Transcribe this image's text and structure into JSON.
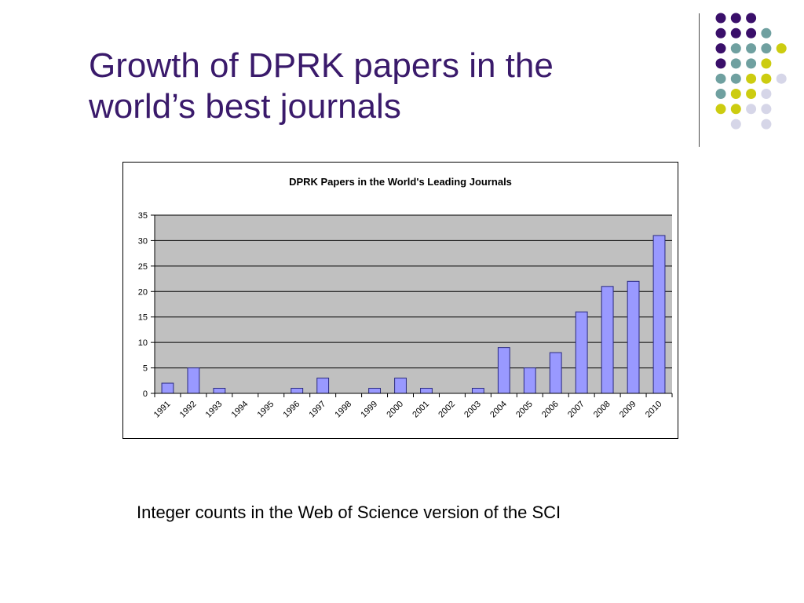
{
  "slide": {
    "title_lines": [
      "Growth of DPRK papers in the",
      "world’s best journals"
    ],
    "caption": "Integer counts in the Web of Science version of the SCI",
    "colors": {
      "title": "#3a1a6b",
      "dot_purple": "#3a0f6a",
      "dot_teal": "#6fa0a0",
      "dot_yellow": "#cccc10",
      "dot_lavender": "#d6d6e8"
    }
  },
  "decor": {
    "dot_grid": [
      [
        "purple",
        "purple",
        "purple",
        null,
        null
      ],
      [
        "purple",
        "purple",
        "purple",
        "teal",
        null
      ],
      [
        "purple",
        "teal",
        "teal",
        "teal",
        "yellow"
      ],
      [
        "purple",
        "teal",
        "teal",
        "yellow",
        null
      ],
      [
        "teal",
        "teal",
        "yellow",
        "yellow",
        "lavender"
      ],
      [
        "teal",
        "yellow",
        "yellow",
        "lavender",
        null
      ],
      [
        "yellow",
        "yellow",
        "lavender",
        "lavender",
        null
      ],
      [
        null,
        "lavender",
        null,
        "lavender",
        null
      ]
    ]
  },
  "chart_data": {
    "type": "bar",
    "title": "DPRK Papers in the World's Leading Journals",
    "xlabel": "",
    "ylabel": "",
    "categories": [
      "1991",
      "1992",
      "1993",
      "1994",
      "1995",
      "1996",
      "1997",
      "1998",
      "1999",
      "2000",
      "2001",
      "2002",
      "2003",
      "2004",
      "2005",
      "2006",
      "2007",
      "2008",
      "2009",
      "2010"
    ],
    "values": [
      2,
      5,
      1,
      0,
      0,
      1,
      3,
      0,
      1,
      3,
      1,
      0,
      1,
      9,
      5,
      8,
      16,
      21,
      22,
      31
    ],
    "ylim": [
      0,
      35
    ],
    "yticks": [
      0,
      5,
      10,
      15,
      20,
      25,
      30,
      35
    ],
    "grid": true,
    "legend": "none",
    "colors": {
      "bar_fill": "#9999ff",
      "bar_stroke": "#2a2a80",
      "plot_background": "#c0c0c0",
      "gridline": "#000000"
    }
  }
}
